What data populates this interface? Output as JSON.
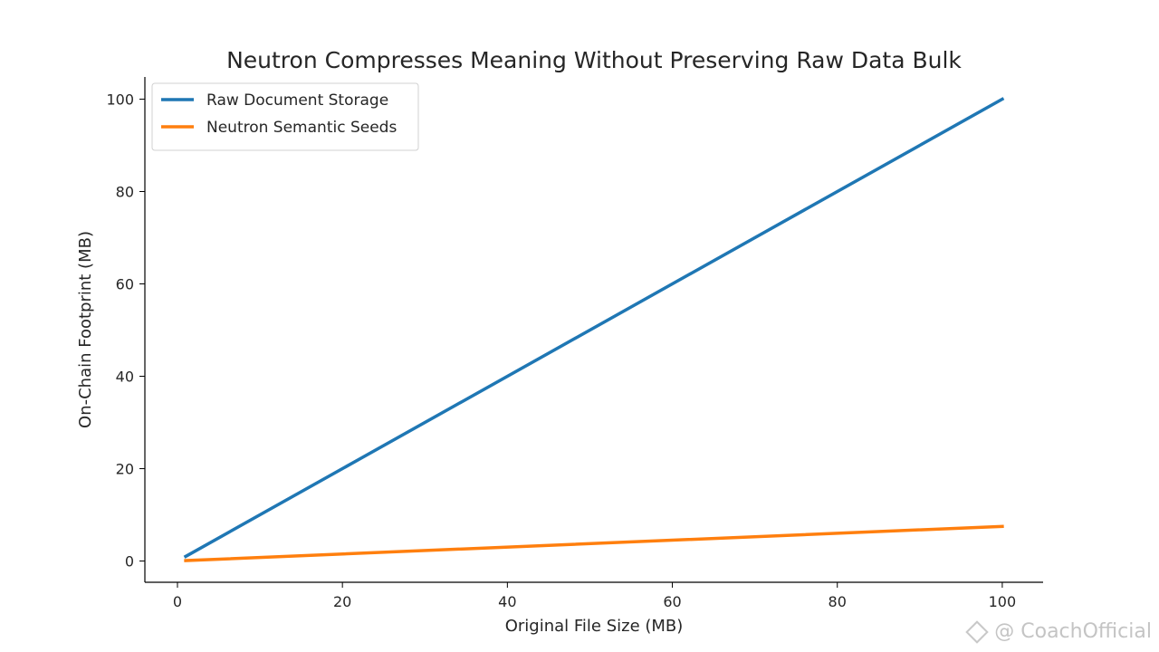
{
  "chart_data": {
    "type": "line",
    "title": "Neutron Compresses Meaning Without Preserving Raw Data Bulk",
    "xlabel": "Original File Size (MB)",
    "ylabel": "On-Chain Footprint (MB)",
    "xlim": [
      -3.95,
      104.95
    ],
    "ylim": [
      -4.6,
      104.8
    ],
    "xticks": [
      0,
      20,
      40,
      60,
      80,
      100
    ],
    "yticks": [
      0,
      20,
      40,
      60,
      80,
      100
    ],
    "grid": false,
    "legend_position": "top-left",
    "series": [
      {
        "name": "Raw Document Storage",
        "color": "#1f77b4",
        "x": [
          1,
          100
        ],
        "y": [
          1,
          100
        ]
      },
      {
        "name": "Neutron Semantic Seeds",
        "color": "#ff7f0e",
        "x": [
          1,
          100
        ],
        "y": [
          0.1,
          7.5
        ]
      }
    ]
  },
  "watermark": {
    "icon": "binance-logo-icon",
    "text": "@ CoachOfficial"
  }
}
